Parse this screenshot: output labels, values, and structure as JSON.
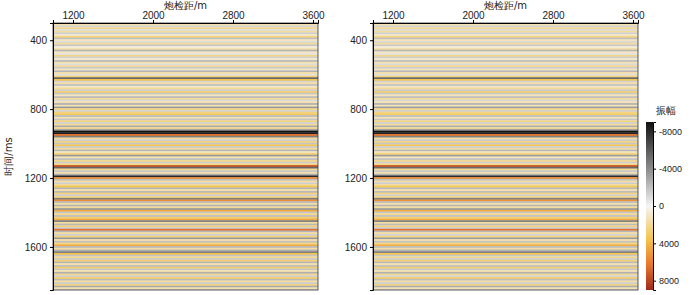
{
  "chart_data": [
    {
      "type": "heatmap",
      "x_label": "炮检距/m",
      "y_label": "时间/ms",
      "xlim": [
        1000,
        3650
      ],
      "xticks": [
        1200,
        2000,
        2800,
        3600
      ],
      "ylim": [
        300,
        1850
      ],
      "yticks": [
        400,
        800,
        1200,
        1600
      ],
      "zlim": [
        -9000,
        9000
      ],
      "time": [
        310,
        320,
        330,
        340,
        350,
        360,
        370,
        380,
        390,
        400,
        410,
        420,
        430,
        440,
        450,
        460,
        470,
        480,
        490,
        500,
        510,
        520,
        530,
        540,
        550,
        560,
        570,
        580,
        590,
        600,
        610,
        620,
        630,
        640,
        650,
        660,
        670,
        680,
        690,
        700,
        710,
        720,
        730,
        740,
        750,
        760,
        770,
        780,
        790,
        800,
        810,
        820,
        830,
        840,
        850,
        860,
        870,
        880,
        890,
        900,
        910,
        920,
        930,
        940,
        950,
        960,
        970,
        980,
        990,
        1000,
        1010,
        1020,
        1030,
        1040,
        1050,
        1060,
        1070,
        1080,
        1090,
        1100,
        1110,
        1120,
        1130,
        1140,
        1150,
        1160,
        1170,
        1180,
        1190,
        1200,
        1210,
        1220,
        1230,
        1240,
        1250,
        1260,
        1270,
        1280,
        1290,
        1300,
        1310,
        1320,
        1330,
        1340,
        1350,
        1360,
        1370,
        1380,
        1390,
        1400,
        1410,
        1420,
        1430,
        1440,
        1450,
        1460,
        1470,
        1480,
        1490,
        1500,
        1510,
        1520,
        1530,
        1540,
        1550,
        1560,
        1570,
        1580,
        1590,
        1600,
        1610,
        1620,
        1630,
        1640,
        1650,
        1660,
        1670,
        1680,
        1690,
        1700,
        1710,
        1720,
        1730,
        1740,
        1750,
        1760,
        1770,
        1780,
        1790,
        1800,
        1810,
        1820,
        1830,
        1840,
        1850
      ],
      "amplitude": [
        1500,
        -1200,
        2200,
        -800,
        1800,
        -1500,
        900,
        2500,
        -2000,
        1200,
        -1000,
        2000,
        -1800,
        600,
        1500,
        -2500,
        1200,
        -600,
        2400,
        -1400,
        800,
        -2200,
        1600,
        -900,
        2000,
        -1600,
        1100,
        -2400,
        1700,
        -700,
        2600,
        -5500,
        3500,
        -1200,
        1800,
        -2000,
        900,
        2200,
        -1500,
        2800,
        -1800,
        1200,
        -2200,
        2000,
        -1000,
        1500,
        -2600,
        1300,
        -3500,
        2400,
        -1200,
        2600,
        3200,
        -2200,
        1400,
        -1800,
        2500,
        -1300,
        2000,
        -2800,
        2200,
        -3000,
        -9000,
        -8500,
        6500,
        -4500,
        2000,
        -1500,
        2500,
        -1800,
        3500,
        -1600,
        1800,
        -2400,
        1200,
        2600,
        -3500,
        1400,
        -2000,
        2200,
        -1500,
        2400,
        7500,
        -5500,
        2200,
        -1800,
        1500,
        -2600,
        -8000,
        5500,
        -2000,
        1800,
        -1400,
        2000,
        3500,
        -2400,
        1600,
        -2200,
        2600,
        -1500,
        2400,
        -4500,
        5500,
        -2200,
        1600,
        -2500,
        2000,
        -3500,
        4500,
        -1800,
        2200,
        -2000,
        2800,
        4500,
        -4500,
        1800,
        -2200,
        2600,
        -1600,
        6500,
        -2400,
        1800,
        -1400,
        2600,
        -3500,
        1600,
        -2000,
        2400,
        4500,
        -2200,
        1800,
        -2600,
        -4500,
        3500,
        -1800,
        2200,
        -1600,
        2800,
        -2400,
        1600,
        -2000,
        3000,
        -1800,
        1500,
        -2600,
        2200,
        -1400,
        3000,
        -2200,
        1800,
        -1600,
        2400,
        -2800,
        1500,
        -1200
      ]
    },
    {
      "type": "heatmap",
      "x_label": "炮检距/m",
      "xlim": [
        1000,
        3650
      ],
      "xticks": [
        1200,
        2000,
        2800,
        3600
      ],
      "ylim": [
        300,
        1850
      ],
      "yticks": [
        400,
        800,
        1200,
        1600
      ],
      "zlim": [
        -9000,
        9000
      ],
      "colorbar_label": "振幅",
      "zticks": [
        -8000,
        -4000,
        0,
        4000,
        8000
      ],
      "time": [
        310,
        320,
        330,
        340,
        350,
        360,
        370,
        380,
        390,
        400,
        410,
        420,
        430,
        440,
        450,
        460,
        470,
        480,
        490,
        500,
        510,
        520,
        530,
        540,
        550,
        560,
        570,
        580,
        590,
        600,
        610,
        620,
        630,
        640,
        650,
        660,
        670,
        680,
        690,
        700,
        710,
        720,
        730,
        740,
        750,
        760,
        770,
        780,
        790,
        800,
        810,
        820,
        830,
        840,
        850,
        860,
        870,
        880,
        890,
        900,
        910,
        920,
        930,
        940,
        950,
        960,
        970,
        980,
        990,
        1000,
        1010,
        1020,
        1030,
        1040,
        1050,
        1060,
        1070,
        1080,
        1090,
        1100,
        1110,
        1120,
        1130,
        1140,
        1150,
        1160,
        1170,
        1180,
        1190,
        1200,
        1210,
        1220,
        1230,
        1240,
        1250,
        1260,
        1270,
        1280,
        1290,
        1300,
        1310,
        1320,
        1330,
        1340,
        1350,
        1360,
        1370,
        1380,
        1390,
        1400,
        1410,
        1420,
        1430,
        1440,
        1450,
        1460,
        1470,
        1480,
        1490,
        1500,
        1510,
        1520,
        1530,
        1540,
        1550,
        1560,
        1570,
        1580,
        1590,
        1600,
        1610,
        1620,
        1630,
        1640,
        1650,
        1660,
        1670,
        1680,
        1690,
        1700,
        1710,
        1720,
        1730,
        1740,
        1750,
        1760,
        1770,
        1780,
        1790,
        1800,
        1810,
        1820,
        1830,
        1840,
        1850
      ],
      "amplitude": [
        1400,
        -1300,
        2100,
        -900,
        1900,
        -1400,
        1000,
        2400,
        -2100,
        1300,
        -1100,
        1900,
        -1700,
        700,
        1600,
        -2400,
        1100,
        -700,
        2300,
        -1500,
        900,
        -2100,
        1500,
        -1000,
        2100,
        -1500,
        1200,
        -2300,
        1600,
        -800,
        2500,
        -5400,
        3400,
        -1300,
        1700,
        -1900,
        1000,
        2100,
        -1600,
        2700,
        -1700,
        1300,
        -2100,
        1900,
        -1100,
        1400,
        -2500,
        1200,
        -3400,
        2300,
        -1300,
        2500,
        3100,
        -2100,
        1300,
        -1700,
        2400,
        -1400,
        1900,
        -2700,
        2100,
        -3100,
        -8900,
        -8400,
        6400,
        -4400,
        1900,
        -1600,
        2400,
        -1700,
        3400,
        -1500,
        1700,
        -2300,
        1300,
        2500,
        -3400,
        1300,
        -1900,
        2100,
        -1400,
        2300,
        7400,
        -5400,
        2100,
        -1700,
        1400,
        -2500,
        -7900,
        5400,
        -1900,
        1700,
        -1500,
        1900,
        3400,
        -2300,
        1500,
        -2100,
        2500,
        -1400,
        2300,
        -4400,
        5400,
        -2100,
        1500,
        -2400,
        1900,
        -3400,
        4400,
        -1700,
        2100,
        -1900,
        2700,
        4400,
        -4400,
        1700,
        -2100,
        2500,
        -1500,
        6400,
        -2300,
        1700,
        -1300,
        2500,
        -3400,
        1500,
        -1900,
        2300,
        4400,
        -2100,
        1700,
        -2500,
        -4400,
        3400,
        -1700,
        2100,
        -1500,
        2700,
        -2300,
        1500,
        -1900,
        2900,
        -1700,
        1400,
        -2500,
        2100,
        -1300,
        2900,
        -2100,
        1700,
        -1500,
        2300,
        -2700,
        1400,
        -1100
      ]
    }
  ]
}
